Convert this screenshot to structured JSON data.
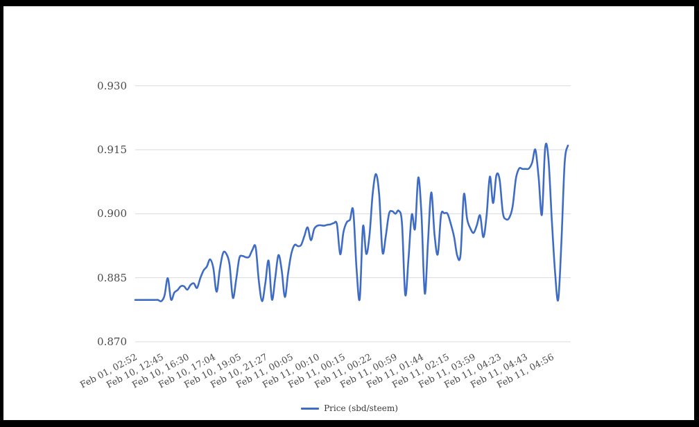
{
  "frame": {
    "border_color": "#000000"
  },
  "legend": {
    "label": "Price (sbd/steem)",
    "position": "bottom"
  },
  "chart_data": {
    "type": "line",
    "title": "",
    "xlabel": "",
    "ylabel": "",
    "grid": true,
    "grid_color": "#d9d9d9",
    "axis_label_color": "#4a4a4a",
    "background_color": "#ffffff",
    "ylim": [
      0.87,
      0.93
    ],
    "y_ticks": [
      {
        "label": "0.870",
        "value": 0.87
      },
      {
        "label": "0.885",
        "value": 0.885
      },
      {
        "label": "0.900",
        "value": 0.9
      },
      {
        "label": "0.915",
        "value": 0.915
      },
      {
        "label": "0.930",
        "value": 0.93
      }
    ],
    "x_tick_labels": [
      "Feb 01, 02:52",
      "Feb 10, 12:45",
      "Feb 10, 16:30",
      "Feb 10, 17:04",
      "Feb 10, 19:05",
      "Feb 10, 21:27",
      "Feb 11, 00:05",
      "Feb 11, 00:10",
      "Feb 11, 00:15",
      "Feb 11, 00:22",
      "Feb 11, 00:59",
      "Feb 11, 01:44",
      "Feb 11, 02:15",
      "Feb 11, 03:59",
      "Feb 11, 04:23",
      "Feb 11, 04:43",
      "Feb 11, 04:56"
    ],
    "tick_every": 8,
    "series": [
      {
        "name": "Price (sbd/steem)",
        "color": "#3e6cc4",
        "values": [
          0.8798,
          0.8798,
          0.8798,
          0.8798,
          0.8798,
          0.8798,
          0.8798,
          0.8798,
          0.8795,
          0.8808,
          0.8849,
          0.8799,
          0.8815,
          0.8821,
          0.883,
          0.883,
          0.8822,
          0.8833,
          0.8837,
          0.8826,
          0.8849,
          0.8867,
          0.8876,
          0.8893,
          0.8873,
          0.8817,
          0.887,
          0.8908,
          0.8906,
          0.888,
          0.8803,
          0.8844,
          0.8896,
          0.8901,
          0.8898,
          0.8899,
          0.8915,
          0.8922,
          0.8842,
          0.8795,
          0.8838,
          0.889,
          0.8799,
          0.8847,
          0.8903,
          0.8869,
          0.8805,
          0.8861,
          0.8907,
          0.8927,
          0.8924,
          0.8927,
          0.8948,
          0.8968,
          0.8938,
          0.8964,
          0.8972,
          0.8973,
          0.8972,
          0.8974,
          0.8975,
          0.8978,
          0.8975,
          0.8905,
          0.8957,
          0.898,
          0.8986,
          0.9008,
          0.8875,
          0.88,
          0.897,
          0.8906,
          0.8949,
          0.9048,
          0.9093,
          0.9043,
          0.891,
          0.8947,
          0.9,
          0.9006,
          0.9,
          0.9007,
          0.8977,
          0.881,
          0.8895,
          0.8998,
          0.8965,
          0.9085,
          0.8995,
          0.8813,
          0.8937,
          0.905,
          0.8951,
          0.8905,
          0.8997,
          0.9001,
          0.9,
          0.8976,
          0.8946,
          0.8901,
          0.8905,
          0.9045,
          0.8988,
          0.8966,
          0.8955,
          0.8973,
          0.8996,
          0.8945,
          0.8996,
          0.9087,
          0.9025,
          0.909,
          0.908,
          0.9002,
          0.8987,
          0.8991,
          0.9017,
          0.9082,
          0.9106,
          0.9105,
          0.9105,
          0.9106,
          0.912,
          0.915,
          0.9084,
          0.8998,
          0.9155,
          0.913,
          0.8992,
          0.8868,
          0.8798,
          0.8935,
          0.912,
          0.916
        ]
      }
    ],
    "legend_position": "bottom"
  }
}
